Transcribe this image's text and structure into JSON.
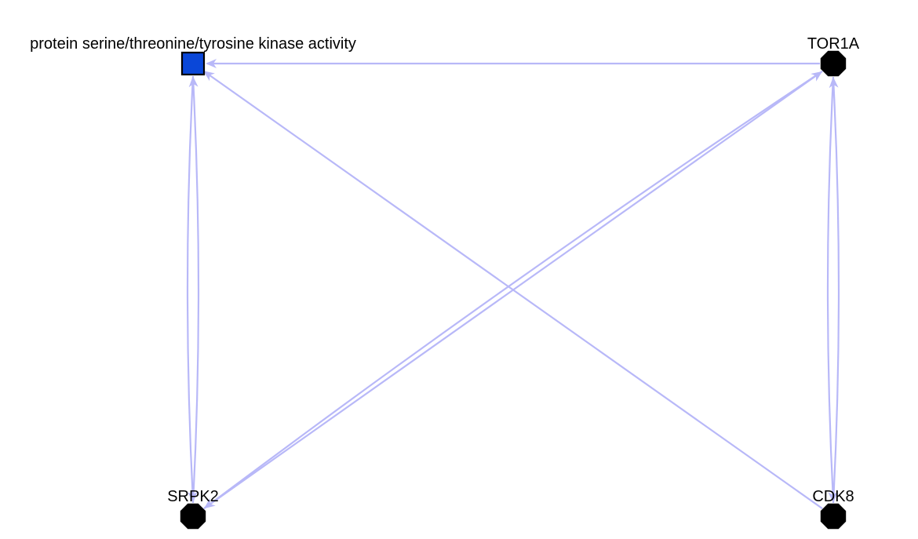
{
  "colors": {
    "edge": "#b8b8f8",
    "term_node_fill": "#0a47d8",
    "gene_node_fill": "#000000",
    "background": "#ffffff"
  },
  "nodes": [
    {
      "id": "term",
      "label": "protein serine/threonine/tyrosine kinase activity",
      "shape": "square"
    },
    {
      "id": "tor1a",
      "label": "TOR1A",
      "shape": "octagon"
    },
    {
      "id": "srpk2",
      "label": "SRPK2",
      "shape": "octagon"
    },
    {
      "id": "cdk8",
      "label": "CDK8",
      "shape": "octagon"
    }
  ],
  "edges": [
    {
      "from": "tor1a",
      "to": "term"
    },
    {
      "from": "srpk2",
      "to": "term"
    },
    {
      "from": "term",
      "to": "srpk2"
    },
    {
      "from": "cdk8",
      "to": "term"
    },
    {
      "from": "srpk2",
      "to": "tor1a"
    },
    {
      "from": "tor1a",
      "to": "srpk2"
    },
    {
      "from": "cdk8",
      "to": "tor1a"
    },
    {
      "from": "tor1a",
      "to": "cdk8"
    }
  ]
}
